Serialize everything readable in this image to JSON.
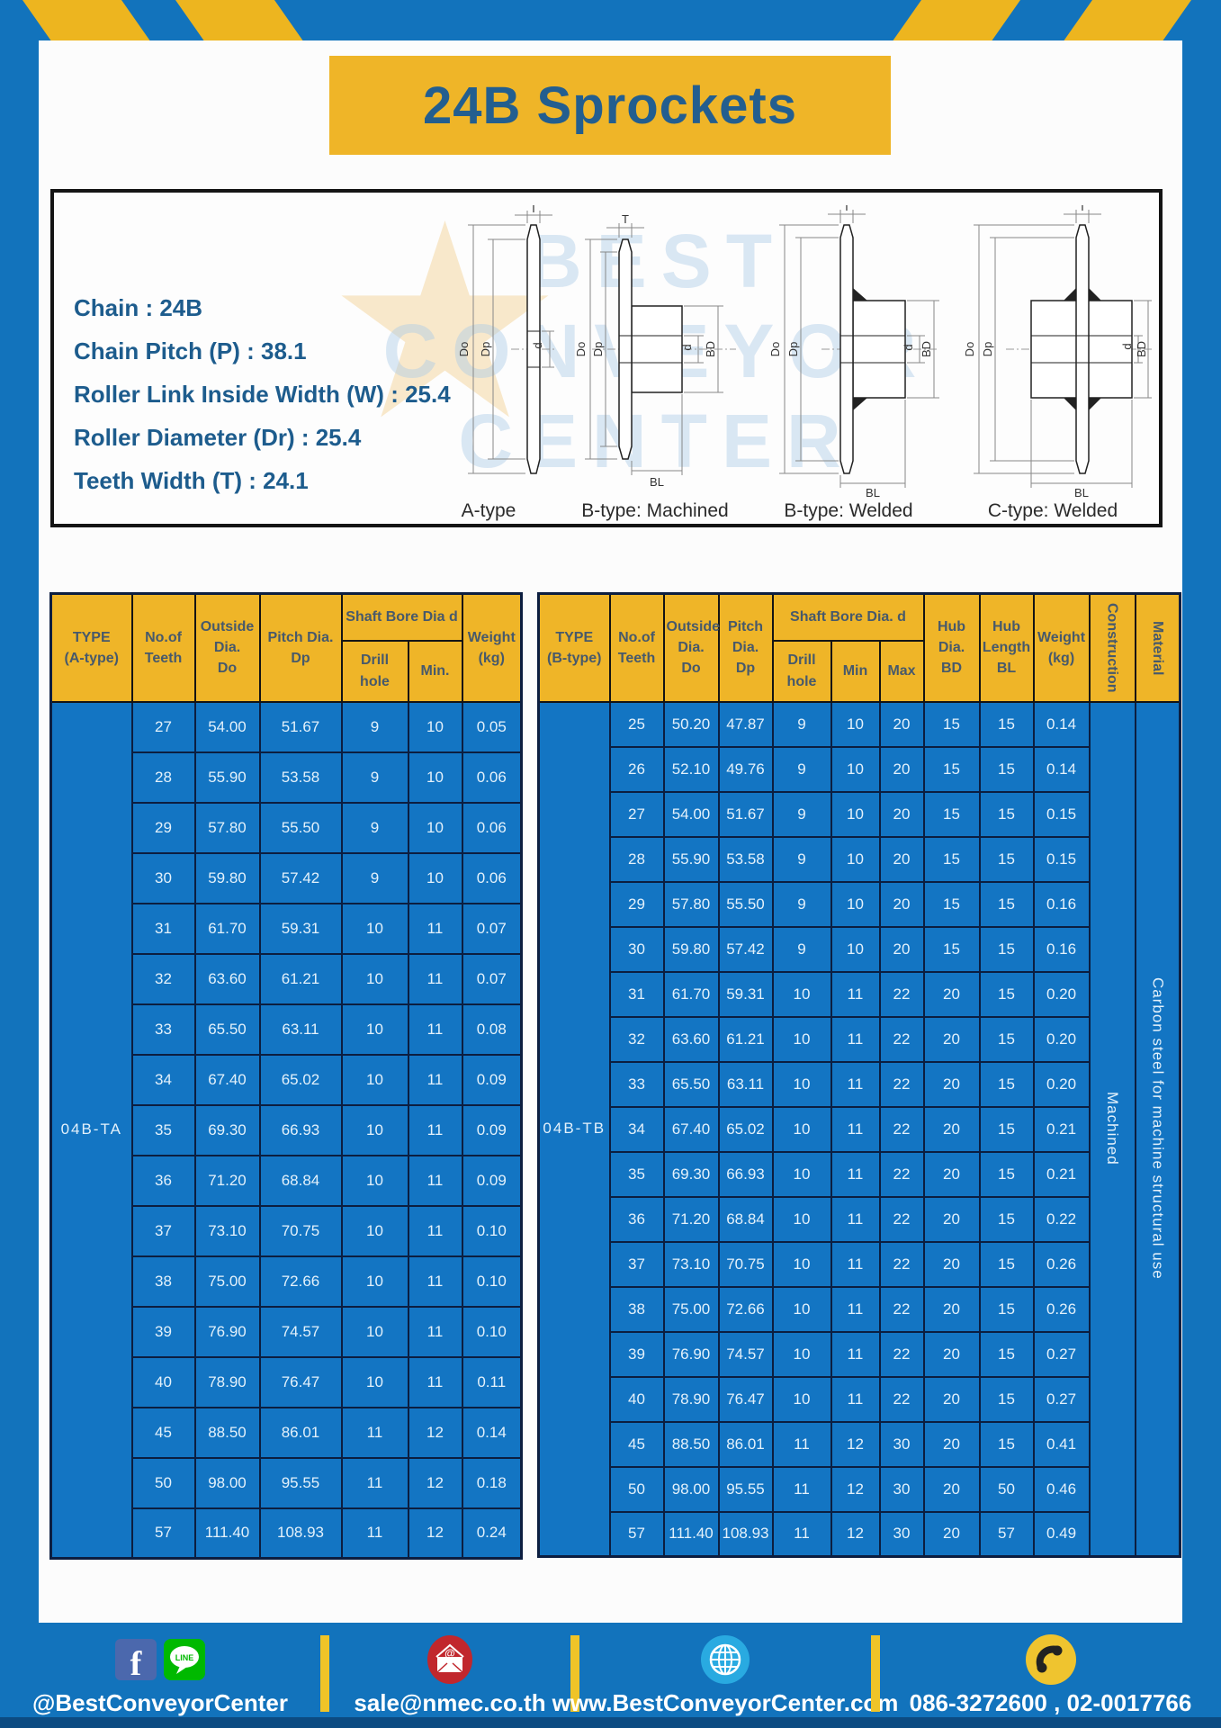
{
  "page": {
    "title": "24B Sprockets"
  },
  "specs": [
    "Chain : 24B",
    "Chain Pitch (P) : 38.1",
    "Roller Link Inside Width (W) : 25.4",
    "Roller Diameter (Dr) : 25.4",
    "Teeth Width (T) : 24.1"
  ],
  "watermark": {
    "line1": "BEST",
    "line2": "CONVEYOR",
    "line3": "CENTER",
    "star": "★"
  },
  "diagram_labels": {
    "t": "T",
    "do": "Do",
    "dp": "Dp",
    "d": "d",
    "bd": "BD",
    "bl": "BL"
  },
  "diagram_captions": {
    "a": "A-type",
    "b_machined": "B-type: Machined",
    "b_welded": "B-type: Welded",
    "c_welded": "C-type: Welded"
  },
  "table_a": {
    "h": {
      "type": "TYPE\n(A-type)",
      "teeth": "No.of\nTeeth",
      "outside": "Outside\nDia.\nDo",
      "pitch": "Pitch Dia.\nDp",
      "bore_group": "Shaft Bore Dia d",
      "drill": "Drill hole",
      "min": "Min.",
      "weight": "Weight\n(kg)"
    },
    "type_value": "04B-TA",
    "rows": [
      [
        "27",
        "54.00",
        "51.67",
        "9",
        "10",
        "0.05"
      ],
      [
        "28",
        "55.90",
        "53.58",
        "9",
        "10",
        "0.06"
      ],
      [
        "29",
        "57.80",
        "55.50",
        "9",
        "10",
        "0.06"
      ],
      [
        "30",
        "59.80",
        "57.42",
        "9",
        "10",
        "0.06"
      ],
      [
        "31",
        "61.70",
        "59.31",
        "10",
        "11",
        "0.07"
      ],
      [
        "32",
        "63.60",
        "61.21",
        "10",
        "11",
        "0.07"
      ],
      [
        "33",
        "65.50",
        "63.11",
        "10",
        "11",
        "0.08"
      ],
      [
        "34",
        "67.40",
        "65.02",
        "10",
        "11",
        "0.09"
      ],
      [
        "35",
        "69.30",
        "66.93",
        "10",
        "11",
        "0.09"
      ],
      [
        "36",
        "71.20",
        "68.84",
        "10",
        "11",
        "0.09"
      ],
      [
        "37",
        "73.10",
        "70.75",
        "10",
        "11",
        "0.10"
      ],
      [
        "38",
        "75.00",
        "72.66",
        "10",
        "11",
        "0.10"
      ],
      [
        "39",
        "76.90",
        "74.57",
        "10",
        "11",
        "0.10"
      ],
      [
        "40",
        "78.90",
        "76.47",
        "10",
        "11",
        "0.11"
      ],
      [
        "45",
        "88.50",
        "86.01",
        "11",
        "12",
        "0.14"
      ],
      [
        "50",
        "98.00",
        "95.55",
        "11",
        "12",
        "0.18"
      ],
      [
        "57",
        "111.40",
        "108.93",
        "11",
        "12",
        "0.24"
      ]
    ]
  },
  "table_b": {
    "h": {
      "type": "TYPE\n(B-type)",
      "teeth": "No.of\nTeeth",
      "outside": "Outside\nDia.\nDo",
      "pitch": "Pitch\nDia.\nDp",
      "bore_group": "Shaft Bore Dia. d",
      "drill": "Drill hole",
      "min": "Min",
      "max": "Max",
      "hub_dia": "Hub\nDia.\nBD",
      "hub_len": "Hub\nLength\nBL",
      "weight": "Weight\n(kg)",
      "construction": "Construction",
      "material": "Material"
    },
    "type_value": "04B-TB",
    "construction_value": "Machined",
    "material_value": "Carbon steel for machine structural use",
    "rows": [
      [
        "25",
        "50.20",
        "47.87",
        "9",
        "10",
        "20",
        "15",
        "15",
        "0.14"
      ],
      [
        "26",
        "52.10",
        "49.76",
        "9",
        "10",
        "20",
        "15",
        "15",
        "0.14"
      ],
      [
        "27",
        "54.00",
        "51.67",
        "9",
        "10",
        "20",
        "15",
        "15",
        "0.15"
      ],
      [
        "28",
        "55.90",
        "53.58",
        "9",
        "10",
        "20",
        "15",
        "15",
        "0.15"
      ],
      [
        "29",
        "57.80",
        "55.50",
        "9",
        "10",
        "20",
        "15",
        "15",
        "0.16"
      ],
      [
        "30",
        "59.80",
        "57.42",
        "9",
        "10",
        "20",
        "15",
        "15",
        "0.16"
      ],
      [
        "31",
        "61.70",
        "59.31",
        "10",
        "11",
        "22",
        "20",
        "15",
        "0.20"
      ],
      [
        "32",
        "63.60",
        "61.21",
        "10",
        "11",
        "22",
        "20",
        "15",
        "0.20"
      ],
      [
        "33",
        "65.50",
        "63.11",
        "10",
        "11",
        "22",
        "20",
        "15",
        "0.20"
      ],
      [
        "34",
        "67.40",
        "65.02",
        "10",
        "11",
        "22",
        "20",
        "15",
        "0.21"
      ],
      [
        "35",
        "69.30",
        "66.93",
        "10",
        "11",
        "22",
        "20",
        "15",
        "0.21"
      ],
      [
        "36",
        "71.20",
        "68.84",
        "10",
        "11",
        "22",
        "20",
        "15",
        "0.22"
      ],
      [
        "37",
        "73.10",
        "70.75",
        "10",
        "11",
        "22",
        "20",
        "15",
        "0.26"
      ],
      [
        "38",
        "75.00",
        "72.66",
        "10",
        "11",
        "22",
        "20",
        "15",
        "0.26"
      ],
      [
        "39",
        "76.90",
        "74.57",
        "10",
        "11",
        "22",
        "20",
        "15",
        "0.27"
      ],
      [
        "40",
        "78.90",
        "76.47",
        "10",
        "11",
        "22",
        "20",
        "15",
        "0.27"
      ],
      [
        "45",
        "88.50",
        "86.01",
        "11",
        "12",
        "30",
        "20",
        "15",
        "0.41"
      ],
      [
        "50",
        "98.00",
        "95.55",
        "11",
        "12",
        "30",
        "20",
        "50",
        "0.46"
      ],
      [
        "57",
        "111.40",
        "108.93",
        "11",
        "12",
        "30",
        "20",
        "57",
        "0.49"
      ]
    ]
  },
  "footer": {
    "social": "@BestConveyorCenter",
    "email": "sale@nmec.co.th",
    "website": "www.BestConveyorCenter.com",
    "phone": "086-3272600 , 02-0017766",
    "facebook_f": "f",
    "line_label": "LINE",
    "email_at": "@"
  },
  "colors": {
    "frame_blue": "#1273BC",
    "accent_yellow": "#EFB528",
    "table_body_blue": "#1375C3",
    "table_border_navy": "#0C1E40",
    "header_text": "#47596B",
    "title_text": "#235E8F",
    "spec_text": "#1D5C8D"
  }
}
